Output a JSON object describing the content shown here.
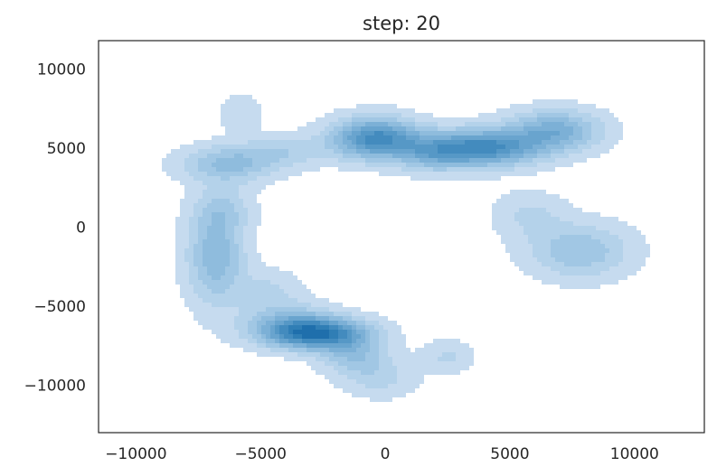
{
  "chart_data": {
    "type": "kde-contour",
    "title": "step: 20",
    "xlabel": "",
    "ylabel": "",
    "xlim": [
      -11500,
      12800
    ],
    "ylim": [
      -13000,
      11800
    ],
    "xticks": [
      -10000,
      -5000,
      0,
      5000,
      10000
    ],
    "yticks": [
      10000,
      5000,
      0,
      -5000,
      -10000
    ],
    "xtick_labels": [
      "−10000",
      "−5000",
      "0",
      "5000",
      "10000"
    ],
    "ytick_labels": [
      "10000",
      "5000",
      "0",
      "−5000",
      "−10000"
    ],
    "grid": false,
    "levels": 10,
    "colormap": [
      "#c6dbef",
      "#b4d2ea",
      "#a1c7e4",
      "#8fbcdd",
      "#7cb0d6",
      "#69a4ce",
      "#5698c6",
      "#438bbe",
      "#307eb5",
      "#1f6fac"
    ],
    "density_modes": [
      {
        "x": -2800,
        "y": -6700,
        "sx": 1400,
        "sy": 700,
        "w": 1.0
      },
      {
        "x": -1300,
        "y": -8000,
        "sx": 900,
        "sy": 900,
        "w": 0.35
      },
      {
        "x": -4000,
        "y": -6000,
        "sx": 1200,
        "sy": 900,
        "w": 0.3
      },
      {
        "x": -6800,
        "y": -1800,
        "sx": 800,
        "sy": 2100,
        "w": 0.48
      },
      {
        "x": -6300,
        "y": 4000,
        "sx": 1300,
        "sy": 800,
        "w": 0.42
      },
      {
        "x": -4000,
        "y": 4800,
        "sx": 1200,
        "sy": 700,
        "w": 0.22
      },
      {
        "x": -5800,
        "y": 7200,
        "sx": 600,
        "sy": 800,
        "w": 0.15
      },
      {
        "x": -400,
        "y": 5600,
        "sx": 1200,
        "sy": 900,
        "w": 0.88
      },
      {
        "x": 3800,
        "y": 5000,
        "sx": 1600,
        "sy": 800,
        "w": 0.9
      },
      {
        "x": 6800,
        "y": 6100,
        "sx": 1300,
        "sy": 900,
        "w": 0.55
      },
      {
        "x": 7800,
        "y": -1500,
        "sx": 1400,
        "sy": 1200,
        "w": 0.38
      },
      {
        "x": 5800,
        "y": 800,
        "sx": 1000,
        "sy": 1000,
        "w": 0.18
      },
      {
        "x": 1800,
        "y": 4600,
        "sx": 900,
        "sy": 800,
        "w": 0.3
      },
      {
        "x": 2500,
        "y": -8200,
        "sx": 700,
        "sy": 700,
        "w": 0.18
      },
      {
        "x": -200,
        "y": -9500,
        "sx": 1000,
        "sy": 900,
        "w": 0.2
      },
      {
        "x": -4700,
        "y": -4000,
        "sx": 900,
        "sy": 900,
        "w": 0.18
      },
      {
        "x": -6500,
        "y": 1200,
        "sx": 800,
        "sy": 1000,
        "w": 0.2
      }
    ]
  }
}
